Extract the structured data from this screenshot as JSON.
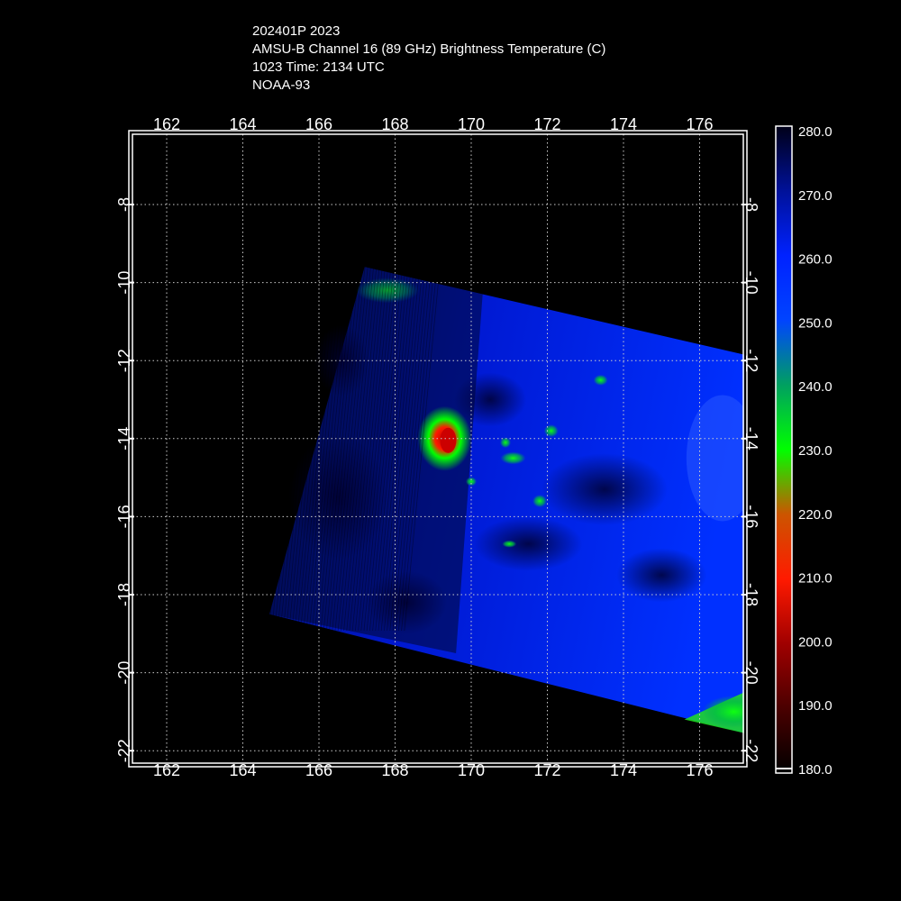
{
  "header": {
    "line1": "202401P 2023",
    "line2": "AMSU-B Channel 16 (89 GHz) Brightness Temperature (C)",
    "line3": "1023 Time: 2134 UTC",
    "line4": "NOAA-93"
  },
  "map": {
    "lon_range": [
      161.4,
      177.4
    ],
    "lat_range": [
      -22.0,
      -6.2
    ],
    "lon_ticks": [
      "162",
      "164",
      "166",
      "168",
      "170",
      "172",
      "174",
      "176"
    ],
    "lat_ticks": [
      "-8",
      "-10",
      "-12",
      "-14",
      "-16",
      "-18",
      "-20",
      "-22"
    ],
    "grid": true,
    "storm_center": {
      "lon": 169.3,
      "lat": -14.0
    },
    "swath_corners": [
      {
        "lon": 167.2,
        "lat": -9.6
      },
      {
        "lon": 177.4,
        "lat": -11.9
      },
      {
        "lon": 177.4,
        "lat": -21.6
      },
      {
        "lon": 164.7,
        "lat": -18.5
      }
    ]
  },
  "colorbar": {
    "labels": [
      "280.0",
      "270.0",
      "260.0",
      "250.0",
      "240.0",
      "230.0",
      "220.0",
      "210.0",
      "200.0",
      "190.0",
      "180.0"
    ],
    "colors": {
      "cold": "#8b0000",
      "red": "#ff1a00",
      "green": "#00ff00",
      "blue": "#0022ff",
      "dark": "#000018"
    }
  }
}
